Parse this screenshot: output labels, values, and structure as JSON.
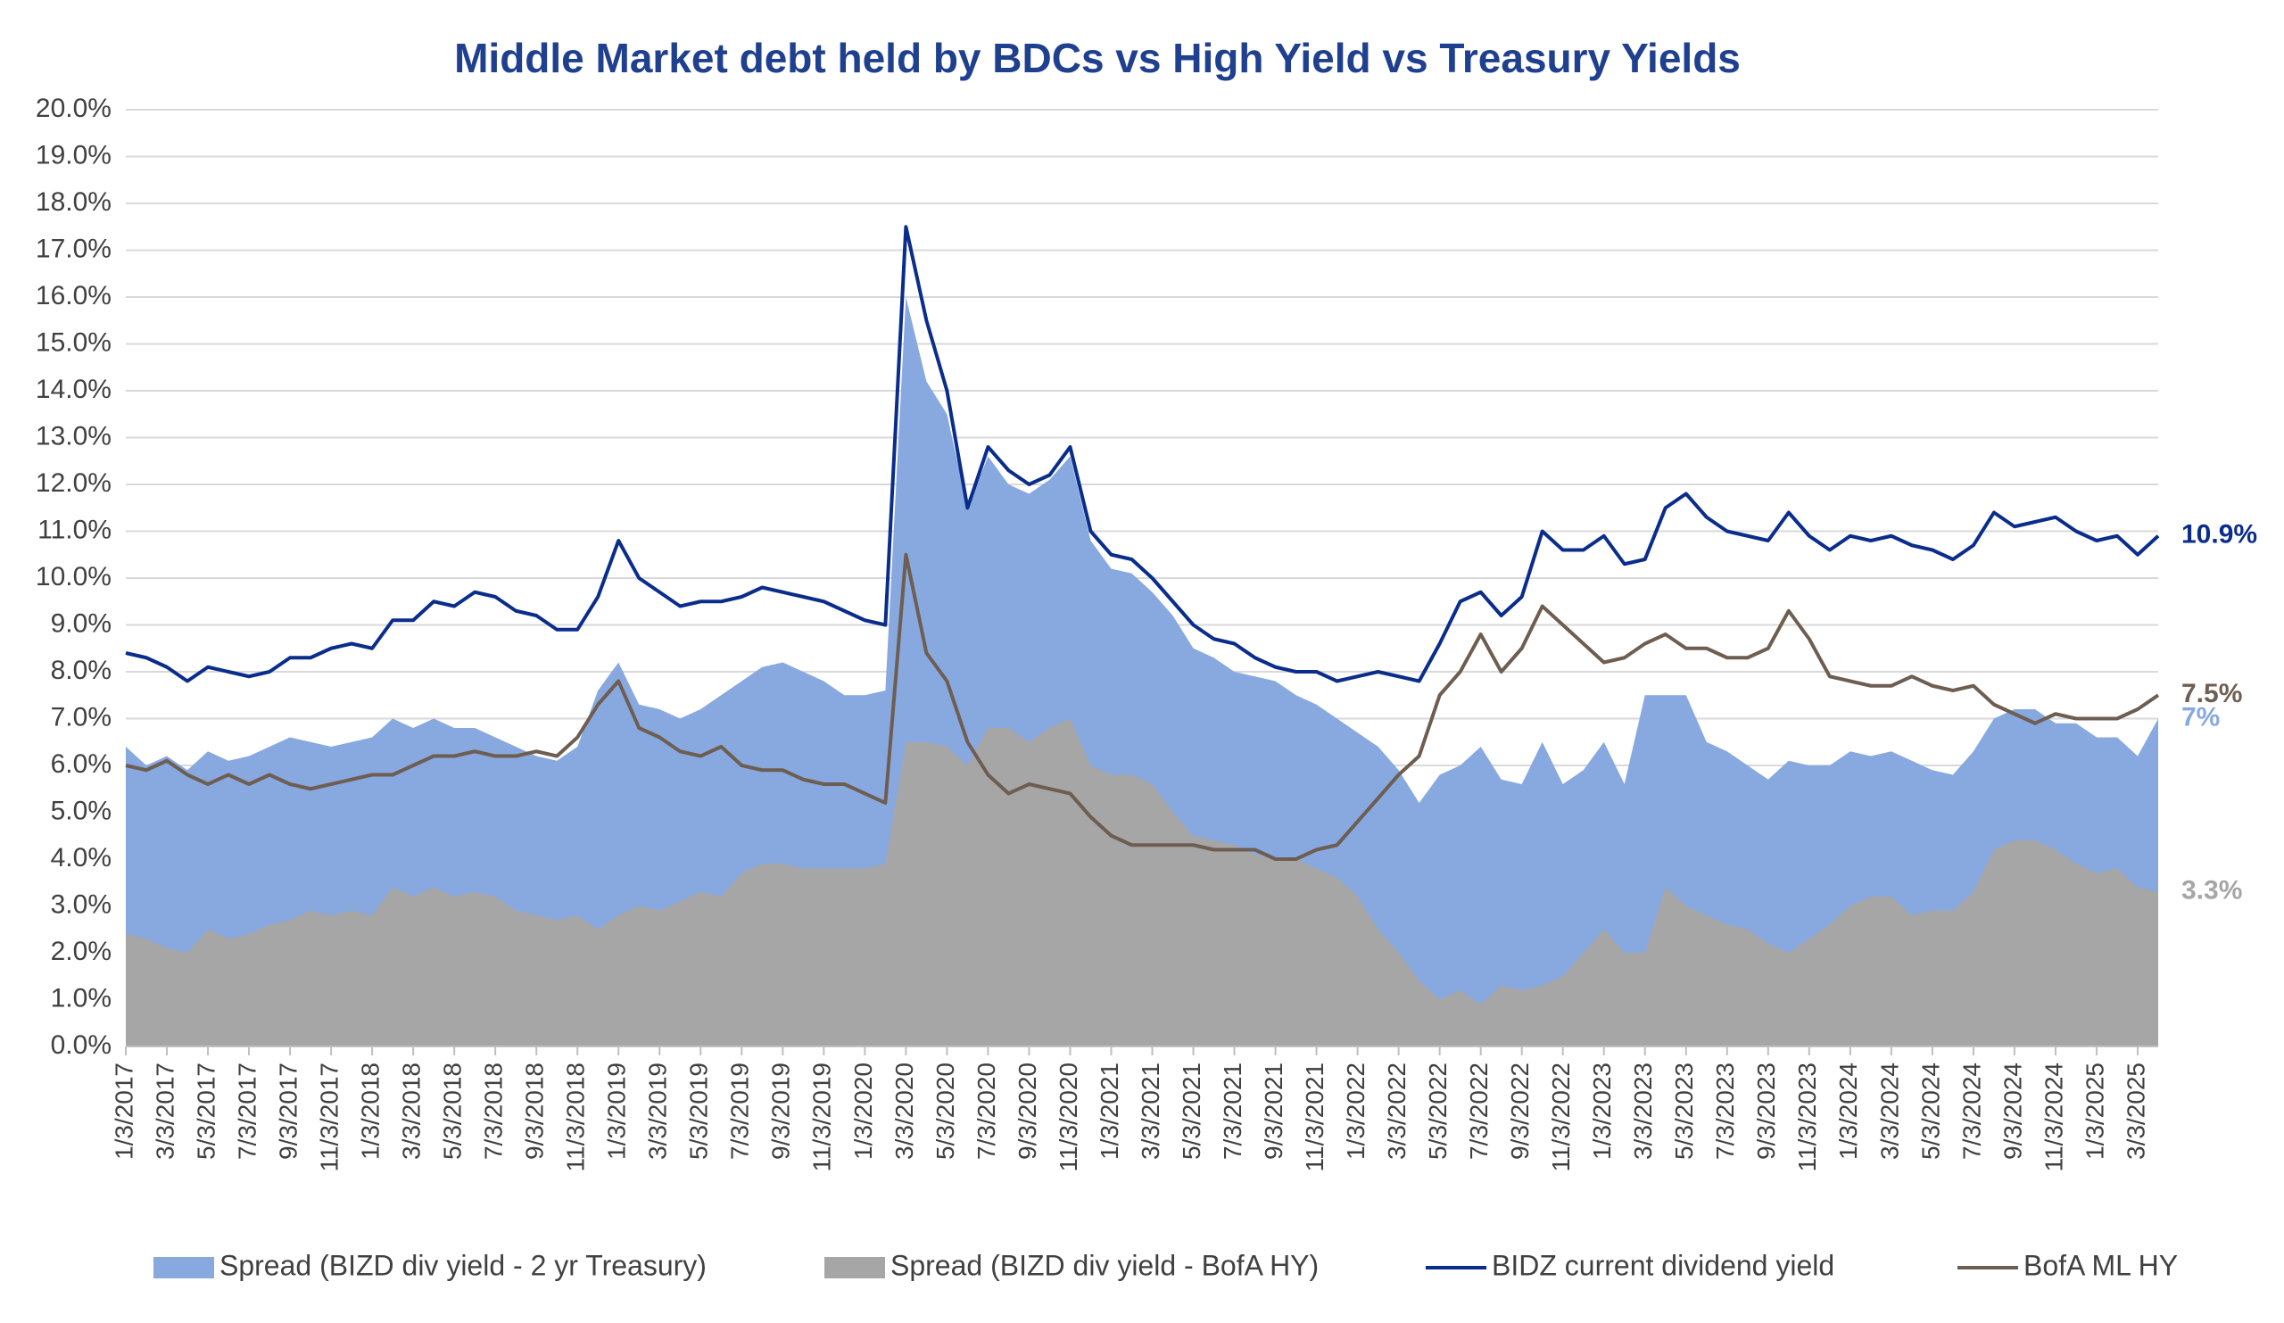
{
  "chart_data": {
    "type": "area-line",
    "title": "Middle Market debt held by BDCs vs High Yield vs Treasury Yields",
    "categories": [
      "1/3/2017",
      null,
      "3/3/2017",
      null,
      "5/3/2017",
      null,
      "7/3/2017",
      null,
      "9/3/2017",
      null,
      "11/3/2017",
      null,
      "1/3/2018",
      null,
      "3/3/2018",
      null,
      "5/3/2018",
      null,
      "7/3/2018",
      null,
      "9/3/2018",
      null,
      "11/3/2018",
      null,
      "1/3/2019",
      null,
      "3/3/2019",
      null,
      "5/3/2019",
      null,
      "7/3/2019",
      null,
      "9/3/2019",
      null,
      "11/3/2019",
      null,
      "1/3/2020",
      null,
      "3/3/2020",
      null,
      "5/3/2020",
      null,
      "7/3/2020",
      null,
      "9/3/2020",
      null,
      "11/3/2020",
      null,
      "1/3/2021",
      null,
      "3/3/2021",
      null,
      "5/3/2021",
      null,
      "7/3/2021",
      null,
      "9/3/2021",
      null,
      "11/3/2021",
      null,
      "1/3/2022",
      null,
      "3/3/2022",
      null,
      "5/3/2022",
      null,
      "7/3/2022",
      null,
      "9/3/2022",
      null,
      "11/3/2022",
      null,
      "1/3/2023",
      null,
      "3/3/2023",
      null,
      "5/3/2023",
      null,
      "7/3/2023",
      null,
      "9/3/2023",
      null,
      "11/3/2023",
      null,
      "1/3/2024",
      null,
      "3/3/2024",
      null,
      "5/3/2024",
      null,
      "7/3/2024",
      null,
      "9/3/2024",
      null,
      "11/3/2024",
      null,
      "1/3/2025",
      null,
      "3/3/2025",
      null
    ],
    "series": [
      {
        "name": "Spread (BIZD div yield - 2 yr Treasury)",
        "kind": "area",
        "color": "#88a8e0",
        "values": [
          6.4,
          6.0,
          6.2,
          5.9,
          6.3,
          6.1,
          6.2,
          6.4,
          6.6,
          6.5,
          6.4,
          6.5,
          6.6,
          7.0,
          6.8,
          7.0,
          6.8,
          6.8,
          6.6,
          6.4,
          6.2,
          6.1,
          6.4,
          7.6,
          8.2,
          7.3,
          7.2,
          7.0,
          7.2,
          7.5,
          7.8,
          8.1,
          8.2,
          8.0,
          7.8,
          7.5,
          7.5,
          7.6,
          16.0,
          14.2,
          13.5,
          11.5,
          12.6,
          12.0,
          11.8,
          12.1,
          12.6,
          10.8,
          10.2,
          10.1,
          9.7,
          9.2,
          8.5,
          8.3,
          8.0,
          7.9,
          7.8,
          7.5,
          7.3,
          7.0,
          6.7,
          6.4,
          5.9,
          5.2,
          5.8,
          6.0,
          6.4,
          5.7,
          5.6,
          6.5,
          5.6,
          5.9,
          6.5,
          5.6,
          7.5,
          7.5,
          7.5,
          6.5,
          6.3,
          6.0,
          5.7,
          6.1,
          6.0,
          6.0,
          6.3,
          6.2,
          6.3,
          6.1,
          5.9,
          5.8,
          6.3,
          7.0,
          7.2,
          7.2,
          6.9,
          6.9,
          6.6,
          6.6,
          6.2,
          7
        ],
        "value_labels": [
          null,
          null,
          null,
          null,
          null,
          null,
          null,
          null,
          null,
          null,
          null,
          null,
          null,
          null,
          null,
          null,
          null,
          null,
          null,
          null,
          null,
          null,
          null,
          null,
          null,
          null,
          null,
          null,
          null,
          null,
          null,
          null,
          null,
          null,
          null,
          null,
          null,
          null,
          null,
          null,
          null,
          null,
          null,
          null,
          null,
          null,
          null,
          null,
          null,
          null,
          null,
          null,
          null,
          null,
          null,
          null,
          null,
          null,
          null,
          null,
          null,
          null,
          null,
          null,
          null,
          null,
          null,
          null,
          null,
          null,
          null,
          null,
          null,
          null,
          null,
          null,
          null,
          null,
          null,
          null,
          null,
          null,
          null,
          null,
          null,
          null,
          null,
          null,
          null,
          null,
          null,
          null,
          null,
          null,
          null,
          null,
          null,
          null,
          null,
          "7%"
        ]
      },
      {
        "name": "Spread (BIZD div yield - BofA HY)",
        "kind": "area",
        "color": "#a6a6a6",
        "values": [
          2.4,
          2.3,
          2.1,
          2.0,
          2.5,
          2.3,
          2.4,
          2.6,
          2.7,
          2.9,
          2.8,
          2.9,
          2.8,
          3.4,
          3.2,
          3.4,
          3.2,
          3.3,
          3.2,
          2.9,
          2.8,
          2.7,
          2.8,
          2.5,
          2.8,
          3.0,
          2.9,
          3.1,
          3.3,
          3.2,
          3.7,
          3.9,
          3.9,
          3.8,
          3.8,
          3.8,
          3.8,
          3.9,
          6.5,
          6.5,
          6.4,
          6.0,
          6.8,
          6.8,
          6.5,
          6.8,
          7.0,
          6.0,
          5.8,
          5.8,
          5.6,
          5.0,
          4.5,
          4.4,
          4.3,
          4.1,
          4.0,
          4.0,
          3.8,
          3.6,
          3.2,
          2.5,
          2.0,
          1.4,
          1.0,
          1.2,
          0.9,
          1.3,
          1.2,
          1.3,
          1.5,
          2.0,
          2.5,
          2.0,
          2.0,
          3.4,
          3.0,
          2.8,
          2.6,
          2.5,
          2.2,
          2.0,
          2.3,
          2.6,
          3.0,
          3.2,
          3.2,
          2.8,
          2.9,
          2.9,
          3.3,
          4.2,
          4.4,
          4.4,
          4.2,
          3.9,
          3.7,
          3.8,
          3.4,
          3.3
        ],
        "value_labels": [
          null,
          null,
          null,
          null,
          null,
          null,
          null,
          null,
          null,
          null,
          null,
          null,
          null,
          null,
          null,
          null,
          null,
          null,
          null,
          null,
          null,
          null,
          null,
          null,
          null,
          null,
          null,
          null,
          null,
          null,
          null,
          null,
          null,
          null,
          null,
          null,
          null,
          null,
          null,
          null,
          null,
          null,
          null,
          null,
          null,
          null,
          null,
          null,
          null,
          null,
          null,
          null,
          null,
          null,
          null,
          null,
          null,
          null,
          null,
          null,
          null,
          null,
          null,
          null,
          null,
          null,
          null,
          null,
          null,
          null,
          null,
          null,
          null,
          null,
          null,
          null,
          null,
          null,
          null,
          null,
          null,
          null,
          null,
          null,
          null,
          null,
          null,
          null,
          null,
          null,
          null,
          null,
          null,
          null,
          null,
          null,
          null,
          null,
          null,
          "3.3%"
        ]
      },
      {
        "name": "BIDZ current dividend yield",
        "kind": "line",
        "color": "#0a2d8c",
        "values": [
          8.4,
          8.3,
          8.1,
          7.8,
          8.1,
          8.0,
          7.9,
          8.0,
          8.3,
          8.3,
          8.5,
          8.6,
          8.5,
          9.1,
          9.1,
          9.5,
          9.4,
          9.7,
          9.6,
          9.3,
          9.2,
          8.9,
          8.9,
          9.6,
          10.8,
          10.0,
          9.7,
          9.4,
          9.5,
          9.5,
          9.6,
          9.8,
          9.7,
          9.6,
          9.5,
          9.3,
          9.1,
          9.0,
          17.5,
          15.5,
          14.0,
          11.5,
          12.8,
          12.3,
          12.0,
          12.2,
          12.8,
          11.0,
          10.5,
          10.4,
          10.0,
          9.5,
          9.0,
          8.7,
          8.6,
          8.3,
          8.1,
          8.0,
          8.0,
          7.8,
          7.9,
          8.0,
          7.9,
          7.8,
          8.6,
          9.5,
          9.7,
          9.2,
          9.6,
          11.0,
          10.6,
          10.6,
          10.9,
          10.3,
          10.4,
          11.5,
          11.8,
          11.3,
          11.0,
          10.9,
          10.8,
          11.4,
          10.9,
          10.6,
          10.9,
          10.8,
          10.9,
          10.7,
          10.6,
          10.4,
          10.7,
          11.4,
          11.1,
          11.2,
          11.3,
          11.0,
          10.8,
          10.9,
          10.5,
          10.9
        ],
        "value_labels": [
          null,
          null,
          null,
          null,
          null,
          null,
          null,
          null,
          null,
          null,
          null,
          null,
          null,
          null,
          null,
          null,
          null,
          null,
          null,
          null,
          null,
          null,
          null,
          null,
          null,
          null,
          null,
          null,
          null,
          null,
          null,
          null,
          null,
          null,
          null,
          null,
          null,
          null,
          null,
          null,
          null,
          null,
          null,
          null,
          null,
          null,
          null,
          null,
          null,
          null,
          null,
          null,
          null,
          null,
          null,
          null,
          null,
          null,
          null,
          null,
          null,
          null,
          null,
          null,
          null,
          null,
          null,
          null,
          null,
          null,
          null,
          null,
          null,
          null,
          null,
          null,
          null,
          null,
          null,
          null,
          null,
          null,
          null,
          null,
          null,
          null,
          null,
          null,
          null,
          null,
          null,
          null,
          null,
          null,
          null,
          null,
          null,
          null,
          null,
          "10.9%"
        ]
      },
      {
        "name": "BofA ML HY",
        "kind": "line",
        "color": "#6e5e52",
        "values": [
          6.0,
          5.9,
          6.1,
          5.8,
          5.6,
          5.8,
          5.6,
          5.8,
          5.6,
          5.5,
          5.6,
          5.7,
          5.8,
          5.8,
          6.0,
          6.2,
          6.2,
          6.3,
          6.2,
          6.2,
          6.3,
          6.2,
          6.6,
          7.3,
          7.8,
          6.8,
          6.6,
          6.3,
          6.2,
          6.4,
          6.0,
          5.9,
          5.9,
          5.7,
          5.6,
          5.6,
          5.4,
          5.2,
          10.5,
          8.4,
          7.8,
          6.5,
          5.8,
          5.4,
          5.6,
          5.5,
          5.4,
          4.9,
          4.5,
          4.3,
          4.3,
          4.3,
          4.3,
          4.2,
          4.2,
          4.2,
          4.0,
          4.0,
          4.2,
          4.3,
          4.8,
          5.3,
          5.8,
          6.2,
          7.5,
          8.0,
          8.8,
          8.0,
          8.5,
          9.4,
          9.0,
          8.6,
          8.2,
          8.3,
          8.6,
          8.8,
          8.5,
          8.5,
          8.3,
          8.3,
          8.5,
          9.3,
          8.7,
          7.9,
          7.8,
          7.7,
          7.7,
          7.9,
          7.7,
          7.6,
          7.7,
          7.3,
          7.1,
          6.9,
          7.1,
          7.0,
          7.0,
          7.0,
          7.2,
          7.5
        ],
        "value_labels": [
          null,
          null,
          null,
          null,
          null,
          null,
          null,
          null,
          null,
          null,
          null,
          null,
          null,
          null,
          null,
          null,
          null,
          null,
          null,
          null,
          null,
          null,
          null,
          null,
          null,
          null,
          null,
          null,
          null,
          null,
          null,
          null,
          null,
          null,
          null,
          null,
          null,
          null,
          null,
          null,
          null,
          null,
          null,
          null,
          null,
          null,
          null,
          null,
          null,
          null,
          null,
          null,
          null,
          null,
          null,
          null,
          null,
          null,
          null,
          null,
          null,
          null,
          null,
          null,
          null,
          null,
          null,
          null,
          null,
          null,
          null,
          null,
          null,
          null,
          null,
          null,
          null,
          null,
          null,
          null,
          null,
          null,
          null,
          null,
          null,
          null,
          null,
          null,
          null,
          null,
          null,
          null,
          null,
          null,
          null,
          null,
          null,
          null,
          null,
          "7.5%"
        ]
      }
    ],
    "ylim": [
      0,
      20
    ],
    "yticks": [
      {
        "value": 0,
        "label": "0.0%"
      },
      {
        "value": 1,
        "label": "1.0%"
      },
      {
        "value": 2,
        "label": "2.0%"
      },
      {
        "value": 3,
        "label": "3.0%"
      },
      {
        "value": 4,
        "label": "4.0%"
      },
      {
        "value": 5,
        "label": "5.0%"
      },
      {
        "value": 6,
        "label": "6.0%"
      },
      {
        "value": 7,
        "label": "7.0%"
      },
      {
        "value": 8,
        "label": "8.0%"
      },
      {
        "value": 9,
        "label": "9.0%"
      },
      {
        "value": 10,
        "label": "10.0%"
      },
      {
        "value": 11,
        "label": "11.0%"
      },
      {
        "value": 12,
        "label": "12.0%"
      },
      {
        "value": 13,
        "label": "13.0%"
      },
      {
        "value": 14,
        "label": "14.0%"
      },
      {
        "value": 15,
        "label": "15.0%"
      },
      {
        "value": 16,
        "label": "16.0%"
      },
      {
        "value": 17,
        "label": "17.0%"
      },
      {
        "value": 18,
        "label": "18.0%"
      },
      {
        "value": 19,
        "label": "19.0%"
      },
      {
        "value": 20,
        "label": "20.0%"
      }
    ],
    "grid": true,
    "legend": "bottom"
  }
}
